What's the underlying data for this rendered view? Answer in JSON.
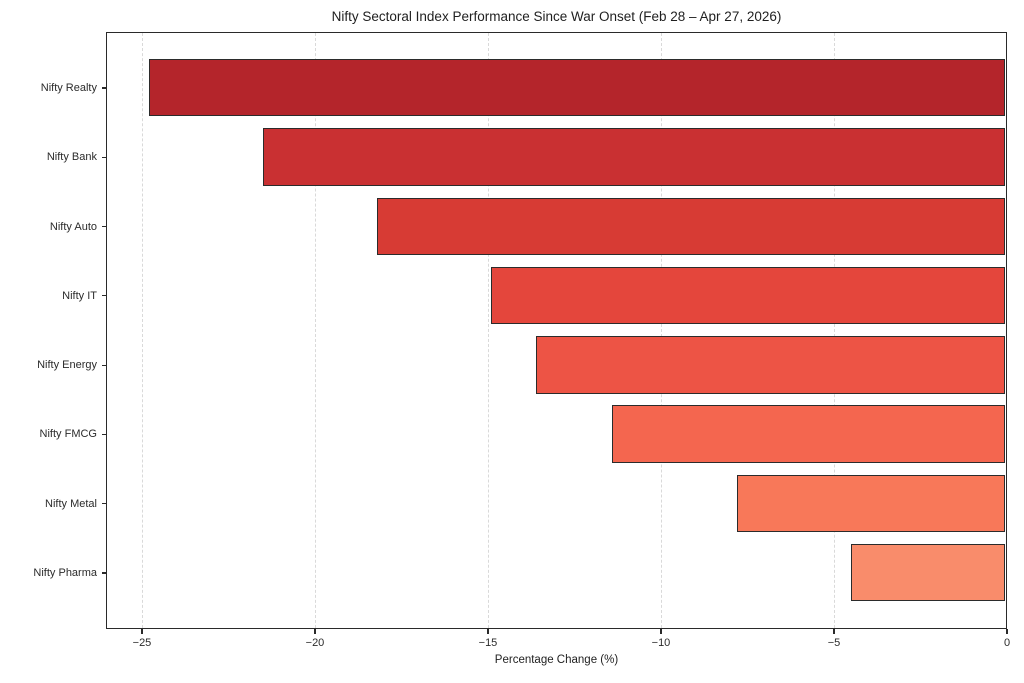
{
  "chart_data": {
    "type": "bar",
    "orientation": "horizontal",
    "title": "Nifty Sectoral Index Performance Since War Onset (Feb 28 – Apr 27, 2026)",
    "xlabel": "Percentage Change (%)",
    "ylabel": "",
    "categories": [
      "Nifty Realty",
      "Nifty Bank",
      "Nifty Auto",
      "Nifty IT",
      "Nifty Energy",
      "Nifty FMCG",
      "Nifty Metal",
      "Nifty Pharma"
    ],
    "values": [
      -24.8,
      -21.5,
      -18.2,
      -14.9,
      -13.6,
      -11.4,
      -7.8,
      -4.5
    ],
    "bar_colors": [
      "#b4252b",
      "#c93032",
      "#d73b34",
      "#e4463c",
      "#ed5445",
      "#f4664f",
      "#f87859",
      "#f98c6b"
    ],
    "bar_edge_color": "#2b2b2b",
    "xlim": [
      -26.04,
      0
    ],
    "xticks": [
      -25,
      -20,
      -15,
      -10,
      -5,
      0
    ],
    "xtick_labels": [
      "−25",
      "−20",
      "−15",
      "−10",
      "−5",
      "0"
    ],
    "grid": "vertical-dashed",
    "grid_color": "#d9d9d9",
    "background_color": "#ffffff",
    "legend": "none"
  }
}
